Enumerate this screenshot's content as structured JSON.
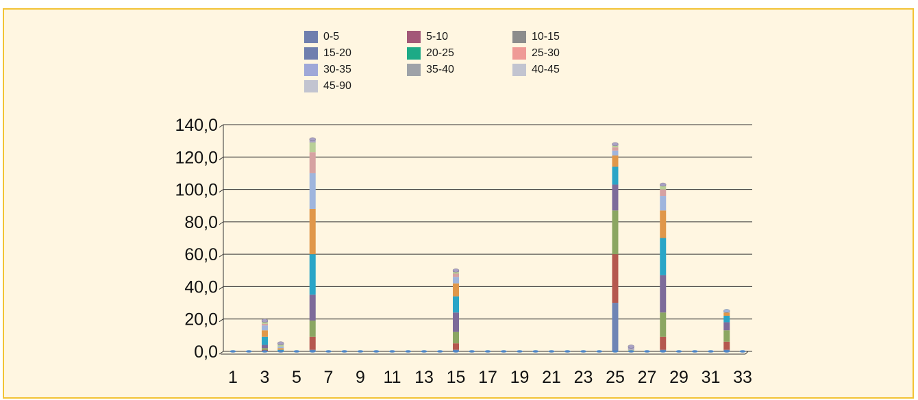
{
  "chart_data": {
    "type": "bar",
    "stacked": true,
    "title": "",
    "xlabel": "",
    "ylabel": "",
    "ylim": [
      0,
      140
    ],
    "yticks": [
      "0,0",
      "20,0",
      "40,0",
      "60,0",
      "80,0",
      "100,0",
      "120,0",
      "140,0"
    ],
    "grid": true,
    "legend_position": "top",
    "categories": [
      1,
      2,
      3,
      4,
      5,
      6,
      7,
      8,
      9,
      10,
      11,
      12,
      13,
      14,
      15,
      16,
      17,
      18,
      19,
      20,
      21,
      22,
      23,
      24,
      25,
      26,
      27,
      28,
      29,
      30,
      31,
      32,
      33
    ],
    "xtick_labels": [
      "1",
      "3",
      "5",
      "7",
      "9",
      "11",
      "13",
      "15",
      "17",
      "19",
      "21",
      "23",
      "25",
      "27",
      "29",
      "31",
      "33"
    ],
    "series": [
      {
        "name": "0-5",
        "color": "#6f85b5",
        "values": [
          0,
          0,
          0,
          0,
          0,
          1,
          0,
          0,
          0,
          0,
          0,
          0,
          0,
          0,
          1,
          0,
          0,
          0,
          0,
          0,
          0,
          0,
          0,
          0,
          30,
          0,
          0,
          1,
          0,
          0,
          0,
          1,
          0
        ]
      },
      {
        "name": "5-10",
        "color": "#b5584f",
        "values": [
          0,
          0,
          1,
          0,
          0,
          8,
          0,
          0,
          0,
          0,
          0,
          0,
          0,
          0,
          4,
          0,
          0,
          0,
          0,
          0,
          0,
          0,
          0,
          0,
          30,
          0,
          0,
          8,
          0,
          0,
          0,
          5,
          0
        ]
      },
      {
        "name": "10-15",
        "color": "#8ba662",
        "values": [
          0,
          0,
          1,
          0,
          0,
          10,
          0,
          0,
          0,
          0,
          0,
          0,
          0,
          0,
          7,
          0,
          0,
          0,
          0,
          0,
          0,
          0,
          0,
          0,
          27,
          0,
          0,
          15,
          0,
          0,
          0,
          7,
          0
        ]
      },
      {
        "name": "15-20",
        "color": "#7d6b9a",
        "values": [
          0,
          0,
          2,
          0,
          0,
          16,
          0,
          0,
          0,
          0,
          0,
          0,
          0,
          0,
          12,
          0,
          0,
          0,
          0,
          0,
          0,
          0,
          0,
          0,
          16,
          0,
          0,
          23,
          0,
          0,
          0,
          5,
          0
        ]
      },
      {
        "name": "20-25",
        "color": "#2aa5c7",
        "values": [
          0,
          0,
          5,
          1,
          0,
          25,
          0,
          0,
          0,
          0,
          0,
          0,
          0,
          0,
          10,
          0,
          0,
          0,
          0,
          0,
          0,
          0,
          0,
          0,
          11,
          0,
          0,
          23,
          0,
          0,
          0,
          4,
          0
        ]
      },
      {
        "name": "25-30",
        "color": "#e0974a",
        "values": [
          0,
          0,
          4,
          1,
          0,
          28,
          0,
          0,
          0,
          0,
          0,
          0,
          0,
          0,
          8,
          0,
          0,
          0,
          0,
          0,
          0,
          0,
          0,
          0,
          7,
          0,
          0,
          17,
          0,
          0,
          0,
          2,
          0
        ]
      },
      {
        "name": "30-35",
        "color": "#9fb5dd",
        "values": [
          0,
          0,
          3,
          1,
          0,
          22,
          0,
          0,
          0,
          0,
          0,
          0,
          0,
          0,
          4,
          0,
          0,
          0,
          0,
          0,
          0,
          0,
          0,
          0,
          3,
          0,
          0,
          9,
          0,
          0,
          0,
          1,
          0
        ]
      },
      {
        "name": "35-40",
        "color": "#d6a2a2",
        "values": [
          0,
          0,
          1,
          0,
          0,
          13,
          0,
          0,
          0,
          0,
          0,
          0,
          0,
          0,
          2,
          0,
          0,
          0,
          0,
          0,
          0,
          0,
          0,
          0,
          2,
          0,
          0,
          4,
          0,
          0,
          0,
          0,
          0
        ]
      },
      {
        "name": "40-45",
        "color": "#b9cf97",
        "values": [
          0,
          0,
          1,
          1,
          0,
          6,
          0,
          0,
          0,
          0,
          0,
          0,
          0,
          0,
          1,
          0,
          0,
          0,
          0,
          0,
          0,
          0,
          0,
          0,
          1,
          1,
          0,
          2,
          0,
          0,
          0,
          0,
          0
        ]
      },
      {
        "name": "45-90",
        "color": "#a9a1c4",
        "values": [
          0,
          0,
          1,
          1,
          0,
          2,
          0,
          0,
          0,
          0,
          0,
          0,
          0,
          0,
          1,
          0,
          0,
          0,
          0,
          0,
          0,
          0,
          0,
          0,
          1,
          2,
          0,
          1,
          0,
          0,
          0,
          0,
          0
        ]
      }
    ]
  },
  "legend": {
    "items": [
      {
        "label": "0-5",
        "color": "#6f7fae"
      },
      {
        "label": "5-10",
        "color": "#a35878"
      },
      {
        "label": "10-15",
        "color": "#8c8c8c"
      },
      {
        "label": "15-20",
        "color": "#6f7fae"
      },
      {
        "label": "20-25",
        "color": "#1daa86"
      },
      {
        "label": "25-30",
        "color": "#ef9a96"
      },
      {
        "label": "30-35",
        "color": "#9fa8d8"
      },
      {
        "label": "35-40",
        "color": "#9ea2a8"
      },
      {
        "label": "40-45",
        "color": "#c2c4d0"
      },
      {
        "label": "45-90",
        "color": "#c2c4d0"
      }
    ]
  }
}
